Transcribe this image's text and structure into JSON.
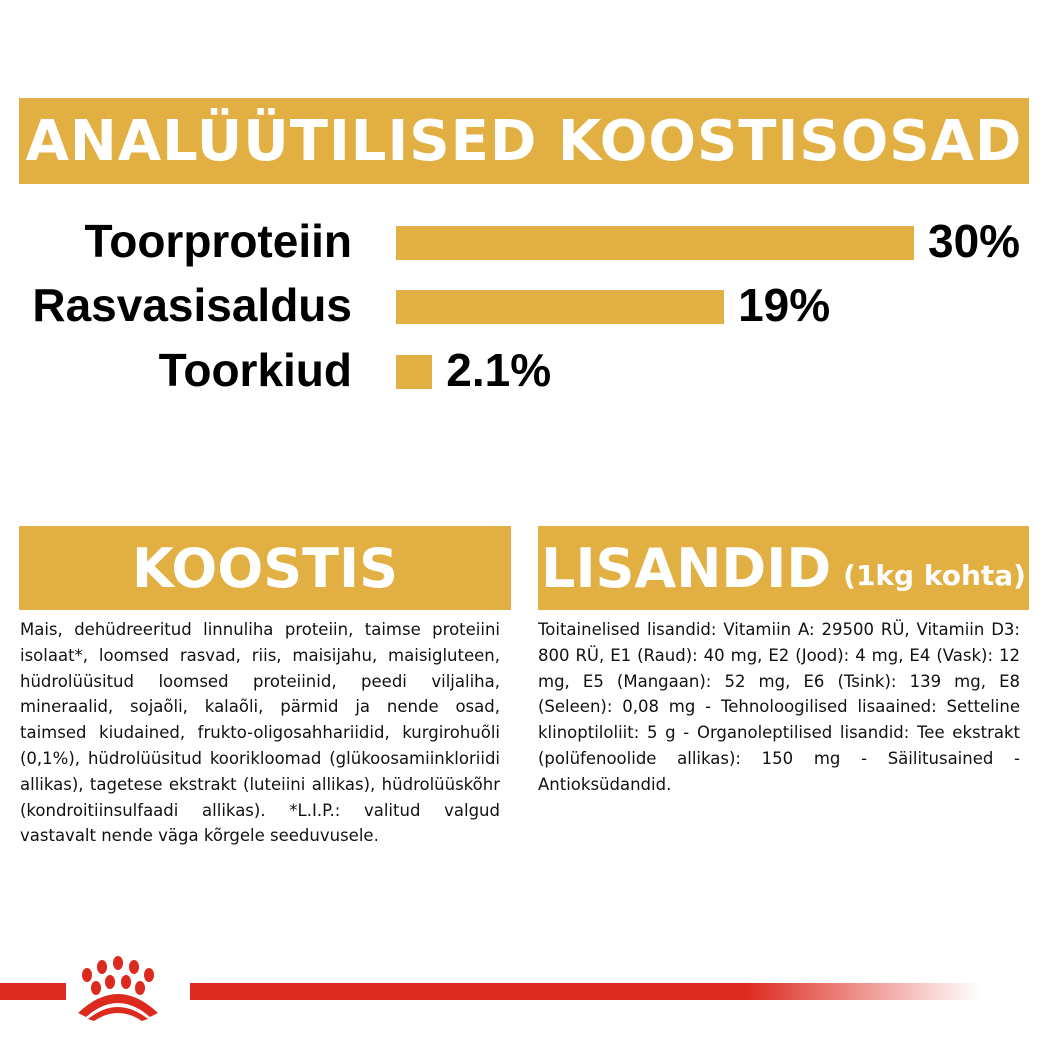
{
  "header": {
    "title": "ANALÜÜTILISED KOOSTISOSAD"
  },
  "chart_data": {
    "type": "bar",
    "orientation": "horizontal",
    "categories": [
      "Toorproteiin",
      "Rasvasisaldus",
      "Toorkiud"
    ],
    "values": [
      30,
      19,
      2.1
    ],
    "labels": [
      "30%",
      "19%",
      "2.1%"
    ],
    "color": "#e2b042"
  },
  "koostis": {
    "title": "KOOSTIS",
    "text": "Mais, dehüdreeritud linnuliha proteiin, taimse proteiini isolaat*, loomsed rasvad, riis, maisijahu, maisigluteen, hüdrolüüsitud loomsed proteiinid, peedi viljaliha, mineraalid, sojaõli, kalaõli, pärmid ja nende osad, taimsed kiudained, frukto-oligosahhariidid, kurgirohuõli (0,1%), hüdrolüüsitud koorikloomad (glükoosamiinkloriidi allikas), tagetese ekstrakt (luteiini allikas), hüdrolüüskõhr (kondroitiinsulfaadi allikas). *L.I.P.: valitud valgud vastavalt nende väga kõrgele seeduvusele."
  },
  "lisandid": {
    "title": "LISANDID",
    "subtitle": "(1kg kohta)",
    "text": "Toitainelised lisandid: Vitamiin A: 29500 RÜ, Vitamiin D3: 800 RÜ, E1 (Raud): 40 mg, E2 (Jood): 4 mg, E4 (Vask): 12 mg, E5 (Mangaan): 52 mg, E6 (Tsink): 139 mg, E8 (Seleen): 0,08 mg - Tehnoloogilised lisaained: Setteline klinoptiloliit: 5 g - Organoleptilised lisandid: Tee ekstrakt (polüfenoolide allikas): 150 mg - Säilitusained - Antioksüdandid."
  },
  "brand": {
    "logo": "royal-canin-crown",
    "stripe_color": "#dc2a1f"
  }
}
